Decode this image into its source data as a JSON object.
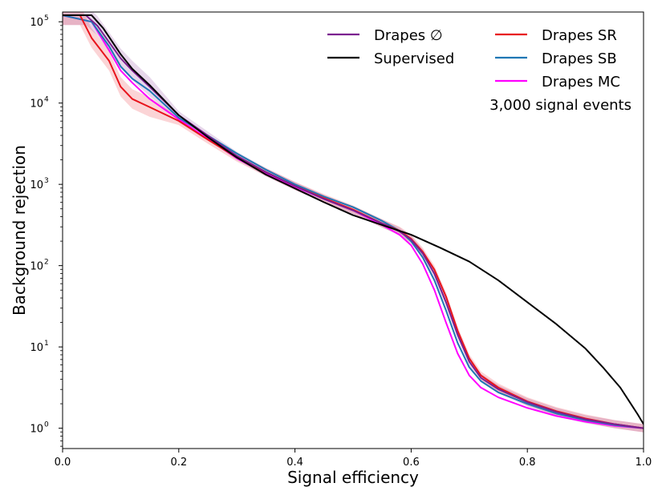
{
  "chart_data": {
    "type": "line",
    "title": "",
    "xlabel": "Signal efficiency",
    "ylabel": "Background rejection",
    "xscale": "linear",
    "yscale": "log",
    "xlim": [
      0.0,
      1.0
    ],
    "ylim_log10": [
      -0.25,
      5.12
    ],
    "grid": false,
    "legend_position": "top-right",
    "annotation": "3,000 signal events",
    "x_ticks": [
      {
        "value": 0.0,
        "label": "0.0"
      },
      {
        "value": 0.2,
        "label": "0.2"
      },
      {
        "value": 0.4,
        "label": "0.4"
      },
      {
        "value": 0.6,
        "label": "0.6"
      },
      {
        "value": 0.8,
        "label": "0.8"
      },
      {
        "value": 1.0,
        "label": "1.0"
      }
    ],
    "y_ticks": [
      {
        "log10": 0,
        "base": "10",
        "exp": "0"
      },
      {
        "log10": 1,
        "base": "10",
        "exp": "1"
      },
      {
        "log10": 2,
        "base": "10",
        "exp": "2"
      },
      {
        "log10": 3,
        "base": "10",
        "exp": "3"
      },
      {
        "log10": 4,
        "base": "10",
        "exp": "4"
      },
      {
        "log10": 5,
        "base": "10",
        "exp": "5"
      }
    ],
    "series": [
      {
        "name": "Drapes ∅",
        "color": "#7b1f8f",
        "band": true,
        "x": [
          0.0,
          0.04,
          0.06,
          0.08,
          0.1,
          0.12,
          0.15,
          0.2,
          0.25,
          0.3,
          0.35,
          0.4,
          0.45,
          0.5,
          0.55,
          0.58,
          0.6,
          0.62,
          0.64,
          0.66,
          0.68,
          0.7,
          0.72,
          0.75,
          0.8,
          0.85,
          0.9,
          0.95,
          1.0
        ],
        "log10y": [
          5.08,
          5.08,
          4.95,
          4.75,
          4.55,
          4.4,
          4.2,
          3.85,
          3.6,
          3.35,
          3.15,
          2.98,
          2.82,
          2.68,
          2.52,
          2.42,
          2.32,
          2.15,
          1.9,
          1.55,
          1.15,
          0.82,
          0.62,
          0.48,
          0.32,
          0.2,
          0.11,
          0.05,
          0.0
        ]
      },
      {
        "name": "Supervised",
        "color": "#000000",
        "band": false,
        "x": [
          0.0,
          0.05,
          0.07,
          0.1,
          0.12,
          0.15,
          0.2,
          0.25,
          0.3,
          0.35,
          0.4,
          0.45,
          0.5,
          0.55,
          0.6,
          0.65,
          0.7,
          0.75,
          0.8,
          0.85,
          0.9,
          0.93,
          0.96,
          0.98,
          0.99,
          1.0
        ],
        "log10y": [
          5.08,
          5.08,
          4.92,
          4.6,
          4.42,
          4.22,
          3.85,
          3.58,
          3.33,
          3.12,
          2.95,
          2.78,
          2.62,
          2.5,
          2.38,
          2.22,
          2.05,
          1.82,
          1.55,
          1.28,
          0.98,
          0.75,
          0.5,
          0.28,
          0.17,
          0.05
        ]
      },
      {
        "name": "Drapes SR",
        "color": "#e8131b",
        "band": true,
        "x": [
          0.0,
          0.03,
          0.05,
          0.08,
          0.1,
          0.12,
          0.15,
          0.2,
          0.25,
          0.3,
          0.35,
          0.4,
          0.45,
          0.5,
          0.55,
          0.58,
          0.6,
          0.62,
          0.64,
          0.66,
          0.68,
          0.7,
          0.72,
          0.75,
          0.8,
          0.85,
          0.9,
          0.95,
          1.0
        ],
        "log10y": [
          5.08,
          5.08,
          4.8,
          4.52,
          4.2,
          4.05,
          3.95,
          3.78,
          3.55,
          3.33,
          3.15,
          2.98,
          2.83,
          2.69,
          2.52,
          2.43,
          2.33,
          2.17,
          1.95,
          1.62,
          1.2,
          0.86,
          0.65,
          0.5,
          0.33,
          0.21,
          0.12,
          0.05,
          0.0
        ]
      },
      {
        "name": "Drapes SB",
        "color": "#1f77b4",
        "band": false,
        "x": [
          0.0,
          0.05,
          0.08,
          0.1,
          0.12,
          0.15,
          0.2,
          0.25,
          0.3,
          0.35,
          0.4,
          0.45,
          0.5,
          0.55,
          0.58,
          0.6,
          0.62,
          0.64,
          0.66,
          0.68,
          0.7,
          0.72,
          0.75,
          0.8,
          0.85,
          0.9,
          0.95,
          1.0
        ],
        "log10y": [
          5.08,
          5.0,
          4.7,
          4.45,
          4.3,
          4.15,
          3.82,
          3.6,
          3.38,
          3.18,
          3.0,
          2.85,
          2.72,
          2.55,
          2.43,
          2.3,
          2.1,
          1.82,
          1.45,
          1.05,
          0.75,
          0.58,
          0.44,
          0.3,
          0.18,
          0.1,
          0.04,
          0.0
        ]
      },
      {
        "name": "Drapes MC",
        "color": "#ff00ff",
        "band": false,
        "x": [
          0.0,
          0.05,
          0.08,
          0.1,
          0.12,
          0.15,
          0.2,
          0.25,
          0.3,
          0.35,
          0.4,
          0.45,
          0.5,
          0.55,
          0.58,
          0.6,
          0.62,
          0.64,
          0.66,
          0.68,
          0.7,
          0.72,
          0.75,
          0.8,
          0.85,
          0.9,
          0.95,
          1.0
        ],
        "log10y": [
          5.08,
          5.0,
          4.65,
          4.4,
          4.25,
          4.05,
          3.8,
          3.56,
          3.32,
          3.13,
          2.97,
          2.82,
          2.68,
          2.5,
          2.38,
          2.25,
          2.02,
          1.7,
          1.3,
          0.92,
          0.65,
          0.5,
          0.38,
          0.25,
          0.15,
          0.08,
          0.03,
          0.0
        ]
      }
    ],
    "legend_columns": [
      [
        "Drapes ∅",
        "Supervised"
      ],
      [
        "Drapes SR",
        "Drapes SB",
        "Drapes MC"
      ]
    ]
  }
}
